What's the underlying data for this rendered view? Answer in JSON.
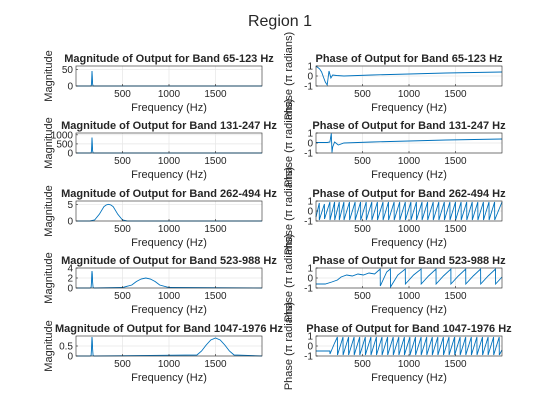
{
  "figure_title": "Region 1",
  "colors": {
    "line": "#0072bd",
    "axis": "#262626",
    "grid": "#e6e6e6",
    "background": "#ffffff"
  },
  "chart_data": [
    {
      "type": "line",
      "title": "Magnitude of Output for Band 65-123 Hz",
      "xlabel": "Frequency (Hz)",
      "ylabel": "Magnitude",
      "xlim": [
        0,
        2000
      ],
      "ylim": [
        0,
        60
      ],
      "xticks": [
        500,
        1000,
        1500
      ],
      "yticks": [
        0,
        50
      ],
      "grid": true,
      "x": [
        0,
        150,
        162,
        167,
        170,
        172,
        175,
        179,
        184,
        196,
        2000
      ],
      "y": [
        0,
        0,
        0,
        6,
        28,
        45,
        28,
        6,
        0,
        0,
        0
      ]
    },
    {
      "type": "line",
      "title": "Phase of Output for Band 65-123 Hz",
      "xlabel": "Frequency (Hz)",
      "ylabel": "Phase (π radians)",
      "xlim": [
        0,
        2000
      ],
      "ylim": [
        -1,
        1
      ],
      "xticks": [
        500,
        1000,
        1500
      ],
      "yticks": [
        -1,
        0,
        1
      ],
      "grid": true,
      "x": [
        0,
        20,
        40,
        60,
        80,
        100,
        120,
        140,
        160,
        180,
        220,
        300,
        600,
        1000,
        1400,
        2000
      ],
      "y": [
        0.95,
        0.85,
        0.7,
        0.4,
        -0.1,
        -0.6,
        -0.9,
        0.5,
        -0.2,
        0.1,
        0.05,
        0.0,
        0.1,
        0.2,
        0.3,
        0.4
      ]
    },
    {
      "type": "line",
      "title": "Magnitude of Output for Band 131-247 Hz",
      "xlabel": "Frequency (Hz)",
      "ylabel": "Magnitude",
      "xlim": [
        0,
        2000
      ],
      "ylim": [
        0,
        1100
      ],
      "xticks": [
        500,
        1000,
        1500
      ],
      "yticks": [
        0,
        500,
        1000
      ],
      "grid": true,
      "x": [
        0,
        150,
        162,
        167,
        170,
        172,
        175,
        179,
        184,
        196,
        2000
      ],
      "y": [
        0,
        0,
        5,
        120,
        520,
        850,
        520,
        120,
        5,
        0,
        0
      ]
    },
    {
      "type": "line",
      "title": "Phase of Output for Band 131-247 Hz",
      "xlabel": "Frequency (Hz)",
      "ylabel": "Phase (π radians)",
      "xlim": [
        0,
        2000
      ],
      "ylim": [
        -1,
        1
      ],
      "xticks": [
        500,
        1000,
        1500
      ],
      "yticks": [
        -1,
        0,
        1
      ],
      "grid": true,
      "x": [
        0,
        40,
        80,
        120,
        150,
        165,
        172,
        180,
        200,
        240,
        300,
        600,
        1000,
        1400,
        2000
      ],
      "y": [
        0.05,
        0.05,
        0.05,
        0.05,
        0.1,
        0.95,
        -0.95,
        -0.4,
        0.1,
        -0.2,
        0.0,
        0.1,
        0.2,
        0.3,
        0.4
      ]
    },
    {
      "type": "line",
      "title": "Magnitude of Output for Band 262-494 Hz",
      "xlabel": "Frequency (Hz)",
      "ylabel": "Magnitude",
      "xlim": [
        0,
        2000
      ],
      "ylim": [
        0,
        6
      ],
      "xticks": [
        500,
        1000,
        1500
      ],
      "yticks": [
        0,
        5
      ],
      "grid": true,
      "x": [
        0,
        150,
        200,
        250,
        300,
        325,
        350,
        375,
        400,
        450,
        500,
        550,
        2000
      ],
      "y": [
        0,
        0,
        0.3,
        2.0,
        4.3,
        4.8,
        5.0,
        4.8,
        4.3,
        2.0,
        0.3,
        0,
        0
      ]
    },
    {
      "type": "line",
      "title": "Phase of Output for Band 262-494 Hz",
      "xlabel": "Frequency (Hz)",
      "ylabel": "Phase (π radians)",
      "xlim": [
        0,
        2000
      ],
      "ylim": [
        -1,
        1
      ],
      "xticks": [
        500,
        1000,
        1500
      ],
      "yticks": [
        -1,
        0,
        1
      ],
      "grid": true,
      "x": [
        0,
        35,
        36,
        90,
        91,
        150,
        151,
        200,
        201,
        250,
        251,
        300,
        301,
        360,
        361,
        420,
        421,
        480,
        481,
        540,
        541,
        600,
        601,
        660,
        661,
        720,
        721,
        780,
        781,
        840,
        841,
        900,
        901,
        960,
        961,
        1020,
        1021,
        1080,
        1081,
        1140,
        1141,
        1200,
        1201,
        1260,
        1261,
        1320,
        1321,
        1380,
        1381,
        1440,
        1441,
        1500,
        1501,
        1560,
        1561,
        1620,
        1621,
        1680,
        1681,
        1740,
        1741,
        1800,
        1801,
        1860,
        1861,
        1920,
        1921,
        2000
      ],
      "y": [
        -0.6,
        0.8,
        -0.9,
        0.7,
        -0.8,
        0.9,
        -0.9,
        0.9,
        -0.9,
        0.9,
        -0.9,
        0.9,
        -0.9,
        0.9,
        -0.9,
        0.9,
        -0.9,
        0.9,
        -0.9,
        0.9,
        -0.9,
        0.9,
        -0.9,
        0.9,
        -0.9,
        0.9,
        -0.9,
        0.9,
        -0.9,
        0.9,
        -0.9,
        0.9,
        -0.9,
        0.9,
        -0.9,
        0.9,
        -0.9,
        0.9,
        -0.9,
        0.9,
        -0.9,
        0.9,
        -0.9,
        0.9,
        -0.9,
        0.9,
        -0.9,
        0.9,
        -0.9,
        0.9,
        -0.9,
        0.9,
        -0.9,
        0.9,
        -0.9,
        0.9,
        -0.9,
        0.9,
        -0.9,
        0.9,
        -0.9,
        0.9,
        -0.9,
        0.9,
        -0.9,
        0.9,
        -0.9,
        0.9
      ]
    },
    {
      "type": "line",
      "title": "Magnitude of Output for Band 523-988 Hz",
      "xlabel": "Frequency (Hz)",
      "ylabel": "Magnitude",
      "xlim": [
        0,
        2000
      ],
      "ylim": [
        0,
        4
      ],
      "xticks": [
        500,
        1000,
        1500
      ],
      "yticks": [
        0,
        2,
        4
      ],
      "grid": true,
      "x": [
        0,
        150,
        162,
        167,
        170,
        172,
        175,
        179,
        184,
        196,
        500,
        600,
        650,
        700,
        750,
        800,
        850,
        900,
        1000,
        2000
      ],
      "y": [
        0,
        0,
        0.1,
        1.2,
        2.8,
        3.4,
        2.8,
        1.2,
        0.1,
        0,
        0.1,
        0.6,
        1.3,
        1.8,
        2.0,
        1.8,
        1.3,
        0.6,
        0.1,
        0
      ]
    },
    {
      "type": "line",
      "title": "Phase of Output for Band 523-988 Hz",
      "xlabel": "Frequency (Hz)",
      "ylabel": "Phase (π radians)",
      "xlim": [
        0,
        2000
      ],
      "ylim": [
        -1,
        1
      ],
      "xticks": [
        500,
        1000,
        1500
      ],
      "yticks": [
        -1,
        0,
        1
      ],
      "grid": true,
      "x": [
        0,
        100,
        170,
        230,
        270,
        330,
        390,
        450,
        510,
        570,
        630,
        690,
        691,
        760,
        800,
        801,
        880,
        960,
        961,
        1050,
        1130,
        1131,
        1210,
        1290,
        1291,
        1370,
        1450,
        1451,
        1530,
        1610,
        1611,
        1690,
        1770,
        1771,
        1850,
        1930,
        1931,
        2000
      ],
      "y": [
        -0.6,
        -0.6,
        -0.4,
        -0.2,
        0.1,
        0.3,
        0.2,
        0.4,
        0.3,
        0.5,
        0.4,
        0.9,
        -0.8,
        0.6,
        0.9,
        -0.9,
        0.3,
        0.9,
        -0.6,
        0.3,
        0.9,
        -0.6,
        0.2,
        0.9,
        -0.6,
        0.2,
        0.9,
        -0.6,
        0.2,
        0.9,
        -0.6,
        0.2,
        0.9,
        -0.6,
        0.2,
        0.9,
        -0.6,
        0.1
      ]
    },
    {
      "type": "line",
      "title": "Magnitude of Output for Band 1047-1976 Hz",
      "xlabel": "Frequency (Hz)",
      "ylabel": "Magnitude",
      "xlim": [
        0,
        2000
      ],
      "ylim": [
        0,
        1
      ],
      "xticks": [
        500,
        1000,
        1500
      ],
      "yticks": [
        0,
        0.5
      ],
      "grid": true,
      "x": [
        0,
        150,
        162,
        167,
        170,
        172,
        175,
        179,
        184,
        196,
        1300,
        1350,
        1400,
        1450,
        1500,
        1550,
        1600,
        1650,
        1700,
        2000
      ],
      "y": [
        0,
        0,
        0.02,
        0.35,
        0.75,
        0.95,
        0.75,
        0.35,
        0.02,
        0,
        0.05,
        0.25,
        0.55,
        0.8,
        0.9,
        0.8,
        0.55,
        0.25,
        0.05,
        0
      ]
    },
    {
      "type": "line",
      "title": "Phase of Output for Band 1047-1976 Hz",
      "xlabel": "Frequency (Hz)",
      "ylabel": "Phase (π radians)",
      "xlim": [
        0,
        2000
      ],
      "ylim": [
        -1,
        1
      ],
      "xticks": [
        500,
        1000,
        1500
      ],
      "yticks": [
        -1,
        0,
        1
      ],
      "grid": true,
      "x": [
        0,
        150,
        151,
        200,
        230,
        231,
        290,
        291,
        350,
        351,
        410,
        411,
        470,
        471,
        530,
        531,
        590,
        591,
        650,
        651,
        710,
        711,
        770,
        771,
        830,
        831,
        890,
        891,
        950,
        951,
        1010,
        1011,
        1070,
        1071,
        1130,
        1131,
        1190,
        1191,
        1250,
        1251,
        1310,
        1311,
        1370,
        1371,
        1430,
        1431,
        1490,
        1491,
        1550,
        1551,
        1610,
        1611,
        1670,
        1671,
        1730,
        1731,
        1790,
        1791,
        1850,
        1851,
        1910,
        1911,
        1970,
        1971,
        2000
      ],
      "y": [
        -0.5,
        -0.5,
        -0.8,
        0.3,
        0.9,
        -0.9,
        0.9,
        -0.9,
        0.9,
        -0.9,
        0.9,
        -0.9,
        0.9,
        -0.9,
        0.9,
        -0.9,
        0.9,
        -0.9,
        0.9,
        -0.9,
        0.9,
        -0.9,
        0.9,
        -0.9,
        0.9,
        -0.9,
        0.9,
        -0.9,
        0.9,
        -0.9,
        0.9,
        -0.9,
        0.9,
        -0.9,
        0.9,
        -0.9,
        0.9,
        -0.9,
        0.9,
        -0.9,
        0.9,
        -0.9,
        0.9,
        -0.9,
        0.9,
        -0.9,
        0.9,
        -0.9,
        0.9,
        -0.9,
        0.9,
        -0.9,
        0.9,
        -0.9,
        0.9,
        -0.9,
        0.9,
        -0.9,
        0.9,
        -0.9,
        0.9,
        -0.9,
        0.9,
        -0.9,
        -0.4
      ]
    }
  ]
}
